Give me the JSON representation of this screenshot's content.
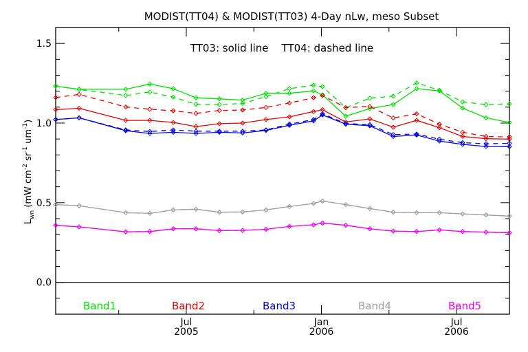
{
  "chart_data": {
    "type": "line",
    "title": "MODIST(TT04) & MODIST(TT03) 4-Day nLw, meso Subset",
    "annotation": "TT03: solid line    TT04: dashed line",
    "xlabel": "",
    "ylabel": {
      "base": "L",
      "sub": "wn",
      "unit_parts": [
        {
          "text": " (mW cm",
          "sup": "-2"
        },
        {
          "text": " sr",
          "sup": "-1"
        },
        {
          "text": " um",
          "sup": "-1"
        },
        {
          "text": ")",
          "sup": ""
        }
      ]
    },
    "x_units": "months since 2005-01-01",
    "xlim": [
      0.2,
      20.35
    ],
    "ylim": [
      -0.2,
      1.6
    ],
    "y_major_ticks": [
      0.0,
      0.5,
      1.0,
      1.5
    ],
    "y_tick_labels": [
      "0.0",
      "0.5",
      "1.0",
      "1.5"
    ],
    "y_minor_step": 0.1,
    "x_major_ticks": [
      {
        "value": 6,
        "label1": "Jul",
        "label2": "2005"
      },
      {
        "value": 12,
        "label1": "Jan",
        "label2": "2006"
      },
      {
        "value": 18,
        "label1": "Jul",
        "label2": "2006"
      }
    ],
    "x_minor_ticks": [
      3,
      9,
      15
    ],
    "reference_line": 0.0,
    "grid": false,
    "legend_placement": "bottom-inside",
    "x": [
      0.2,
      1.24,
      3.31,
      4.38,
      5.42,
      6.43,
      7.47,
      8.5,
      9.54,
      10.58,
      11.65,
      12.05,
      13.08,
      14.15,
      15.19,
      16.23,
      17.24,
      18.27,
      19.31,
      20.35
    ],
    "series": [
      {
        "name": "Band1 TT03",
        "band": "Band1",
        "sensor": "TT03",
        "style": "solid",
        "color": "#00e000",
        "values": [
          1.232,
          1.212,
          1.212,
          1.245,
          1.216,
          1.159,
          1.152,
          1.144,
          1.187,
          1.187,
          1.202,
          1.177,
          1.043,
          1.091,
          1.116,
          1.216,
          1.202,
          1.094,
          1.033,
          1.004
        ]
      },
      {
        "name": "Band1 TT04",
        "band": "Band1",
        "sensor": "TT04",
        "style": "dashed",
        "color": "#00e000",
        "values": [
          1.232,
          1.211,
          1.173,
          1.195,
          1.163,
          1.118,
          1.116,
          1.123,
          1.166,
          1.216,
          1.238,
          1.228,
          1.097,
          1.156,
          1.169,
          1.252,
          1.206,
          1.133,
          1.116,
          1.12
        ]
      },
      {
        "name": "Band2 TT03",
        "band": "Band2",
        "sensor": "TT03",
        "style": "solid",
        "color": "#e00000",
        "values": [
          1.084,
          1.093,
          1.017,
          1.017,
          1.004,
          0.978,
          0.996,
          1.0,
          1.022,
          1.039,
          1.072,
          1.084,
          1.007,
          1.026,
          0.974,
          1.017,
          0.971,
          0.916,
          0.902,
          0.899
        ]
      },
      {
        "name": "Band2 TT04",
        "band": "Band2",
        "sensor": "TT04",
        "style": "dashed",
        "color": "#e00000",
        "values": [
          1.16,
          1.18,
          1.101,
          1.087,
          1.077,
          1.061,
          1.079,
          1.082,
          1.098,
          1.126,
          1.159,
          1.173,
          1.097,
          1.104,
          1.032,
          1.058,
          0.993,
          0.942,
          0.916,
          0.913
        ]
      },
      {
        "name": "Band3 TT03",
        "band": "Band3",
        "sensor": "TT03",
        "style": "solid",
        "color": "#0000d8",
        "values": [
          1.022,
          1.033,
          0.952,
          0.935,
          0.942,
          0.935,
          0.942,
          0.938,
          0.954,
          0.986,
          1.014,
          1.051,
          0.993,
          0.983,
          0.916,
          0.925,
          0.887,
          0.866,
          0.853,
          0.852
        ]
      },
      {
        "name": "Band3 TT04",
        "band": "Band3",
        "sensor": "TT04",
        "style": "dashed",
        "color": "#0000d8",
        "values": [
          1.022,
          1.033,
          0.957,
          0.947,
          0.957,
          0.949,
          0.949,
          0.949,
          0.957,
          0.993,
          1.022,
          1.058,
          0.997,
          0.99,
          0.928,
          0.931,
          0.899,
          0.877,
          0.87,
          0.873
        ]
      },
      {
        "name": "Band4 TT03",
        "band": "Band4",
        "sensor": "TT03",
        "style": "solid",
        "color": "#a0a0a0",
        "values": [
          0.488,
          0.481,
          0.437,
          0.433,
          0.455,
          0.459,
          0.44,
          0.442,
          0.455,
          0.476,
          0.495,
          0.51,
          0.488,
          0.463,
          0.44,
          0.437,
          0.437,
          0.43,
          0.423,
          0.416
        ]
      },
      {
        "name": "Band4 TT04",
        "band": "Band4",
        "sensor": "TT04",
        "style": "dashed",
        "color": "#a0a0a0",
        "values": [
          0.488,
          0.481,
          0.437,
          0.433,
          0.455,
          0.459,
          0.44,
          0.442,
          0.455,
          0.476,
          0.495,
          0.51,
          0.488,
          0.463,
          0.44,
          0.437,
          0.437,
          0.43,
          0.423,
          0.416
        ]
      },
      {
        "name": "Band5 TT03",
        "band": "Band5",
        "sensor": "TT03",
        "style": "solid",
        "color": "#f000f0",
        "values": [
          0.358,
          0.348,
          0.317,
          0.319,
          0.336,
          0.336,
          0.325,
          0.326,
          0.333,
          0.351,
          0.361,
          0.372,
          0.358,
          0.336,
          0.322,
          0.319,
          0.329,
          0.319,
          0.315,
          0.311
        ]
      },
      {
        "name": "Band5 TT04",
        "band": "Band5",
        "sensor": "TT04",
        "style": "dashed",
        "color": "#f000f0",
        "values": [
          0.358,
          0.348,
          0.317,
          0.319,
          0.336,
          0.336,
          0.325,
          0.326,
          0.333,
          0.351,
          0.361,
          0.372,
          0.358,
          0.336,
          0.322,
          0.319,
          0.329,
          0.319,
          0.315,
          0.311
        ]
      }
    ],
    "legend": [
      {
        "label": "Band1",
        "color": "#00e000"
      },
      {
        "label": "Band2",
        "color": "#e00000"
      },
      {
        "label": "Band3",
        "color": "#0000d8"
      },
      {
        "label": "Band4",
        "color": "#a0a0a0"
      },
      {
        "label": "Band5",
        "color": "#f000f0"
      }
    ]
  }
}
